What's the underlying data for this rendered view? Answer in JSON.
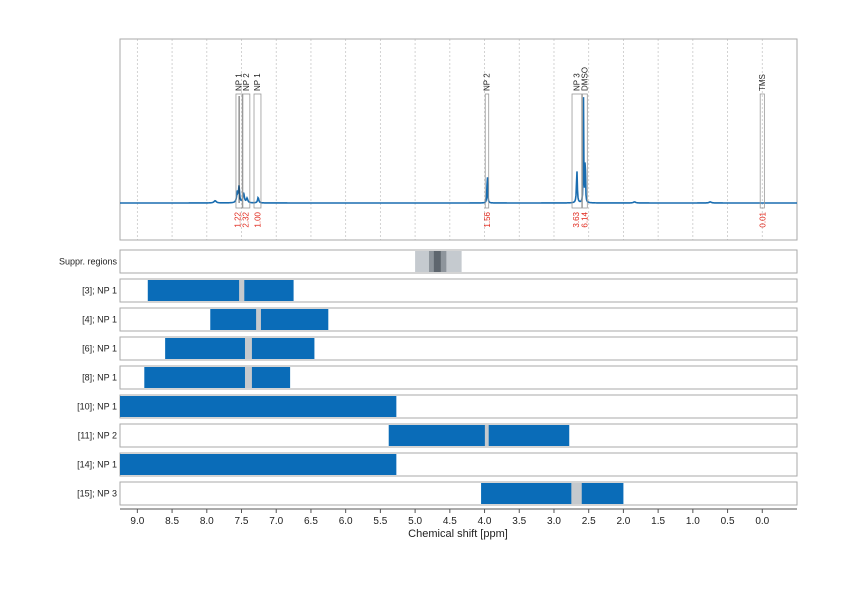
{
  "chart_data": {
    "type": "nmr_spectrum_with_region_bars",
    "xlabel": "Chemical shift [ppm]",
    "xlim": [
      9.25,
      -0.5
    ],
    "reversed_x": true,
    "x_ticks": [
      9.0,
      8.5,
      8.0,
      7.5,
      7.0,
      6.5,
      6.0,
      5.5,
      5.0,
      4.5,
      4.0,
      3.5,
      3.0,
      2.5,
      2.0,
      1.5,
      1.0,
      0.5,
      0.0
    ],
    "x_tick_labels": [
      "9.0",
      "8.5",
      "8.0",
      "7.5",
      "7.0",
      "6.5",
      "6.0",
      "5.5",
      "5.0",
      "4.5",
      "4.0",
      "3.5",
      "3.0",
      "2.5",
      "2.0",
      "1.5",
      "1.0",
      "0.5",
      "0.0"
    ],
    "grid": true,
    "colors": {
      "spectrum": "#1a6db0",
      "bar": "#0a6cb8",
      "highlight": "#c5c9cd",
      "suppr_light": "#c5cacf",
      "suppr_mid": "#8e959c",
      "suppr_dark": "#5e666e",
      "integral": "#e0281c",
      "frame": "#aaaaaa"
    },
    "spectrum": {
      "peaks": [
        {
          "ppm": 7.88,
          "height": 0.02,
          "width": 0.02
        },
        {
          "ppm": 7.56,
          "height": 0.1,
          "width": 0.012
        },
        {
          "ppm": 7.535,
          "height": 0.14,
          "width": 0.008
        },
        {
          "ppm": 7.47,
          "height": 0.09,
          "width": 0.012
        },
        {
          "ppm": 7.42,
          "height": 0.04,
          "width": 0.012
        },
        {
          "ppm": 7.26,
          "height": 0.05,
          "width": 0.01
        },
        {
          "ppm": 3.96,
          "height": 0.3,
          "width": 0.005
        },
        {
          "ppm": 2.67,
          "height": 0.3,
          "width": 0.007
        },
        {
          "ppm": 2.575,
          "height": 0.95,
          "width": 0.004
        },
        {
          "ppm": 2.55,
          "height": 0.55,
          "width": 0.004
        },
        {
          "ppm": 1.84,
          "height": 0.01,
          "width": 0.02
        },
        {
          "ppm": 0.75,
          "height": 0.01,
          "width": 0.02
        }
      ],
      "annotation_lines": [
        7.535
      ]
    },
    "peak_annotations": [
      {
        "label": "NP 1",
        "from": 7.58,
        "to": 7.49
      },
      {
        "label": "NP 2",
        "from": 7.48,
        "to": 7.38
      },
      {
        "label": "NP 1",
        "from": 7.32,
        "to": 7.22
      },
      {
        "label": "NP 2",
        "from": 3.99,
        "to": 3.94
      },
      {
        "label": "NP 3",
        "from": 2.74,
        "to": 2.6
      },
      {
        "label": "DMSO",
        "from": 2.59,
        "to": 2.52
      },
      {
        "label": "TMS",
        "from": 0.03,
        "to": -0.03
      }
    ],
    "integrals": [
      {
        "value": "1.22",
        "ppm": 7.56
      },
      {
        "value": "2.32",
        "ppm": 7.44
      },
      {
        "value": "1.00",
        "ppm": 7.27
      },
      {
        "value": "1.56",
        "ppm": 3.965
      },
      {
        "value": "3.63",
        "ppm": 2.68
      },
      {
        "value": "6.14",
        "ppm": 2.56
      },
      {
        "value": "0.01",
        "ppm": 0.0
      }
    ],
    "rows": [
      {
        "label": "Suppr. regions",
        "type": "suppression",
        "regions": [
          {
            "from": 5.0,
            "to": 4.33,
            "shade": "light"
          },
          {
            "from": 4.8,
            "to": 4.55,
            "shade": "mid"
          },
          {
            "from": 4.73,
            "to": 4.63,
            "shade": "dark"
          }
        ]
      },
      {
        "label": "[3]; NP 1",
        "type": "bars",
        "bars": [
          {
            "from": 8.85,
            "to": 6.75
          }
        ],
        "highlights": [
          {
            "from": 7.535,
            "to": 7.46
          }
        ]
      },
      {
        "label": "[4]; NP 1",
        "type": "bars",
        "bars": [
          {
            "from": 7.95,
            "to": 6.25
          }
        ],
        "highlights": [
          {
            "from": 7.29,
            "to": 7.22
          }
        ]
      },
      {
        "label": "[6]; NP 1",
        "type": "bars",
        "bars": [
          {
            "from": 8.6,
            "to": 6.45
          }
        ],
        "highlights": [
          {
            "from": 7.45,
            "to": 7.35
          }
        ]
      },
      {
        "label": "[8]; NP 1",
        "type": "bars",
        "bars": [
          {
            "from": 8.9,
            "to": 6.8
          }
        ],
        "highlights": [
          {
            "from": 7.45,
            "to": 7.35
          }
        ]
      },
      {
        "label": "[10]; NP 1",
        "type": "bars",
        "bars": [
          {
            "from": 9.25,
            "to": 5.27
          }
        ],
        "highlights": []
      },
      {
        "label": "[11]; NP 2",
        "type": "bars",
        "bars": [
          {
            "from": 5.38,
            "to": 2.78
          }
        ],
        "highlights": [
          {
            "from": 3.995,
            "to": 3.94
          }
        ]
      },
      {
        "label": "[14]; NP 1",
        "type": "bars",
        "bars": [
          {
            "from": 9.25,
            "to": 5.27
          }
        ],
        "highlights": []
      },
      {
        "label": "[15]; NP 3",
        "type": "bars",
        "bars": [
          {
            "from": 4.05,
            "to": 2.0
          }
        ],
        "highlights": [
          {
            "from": 2.75,
            "to": 2.6
          }
        ]
      }
    ]
  }
}
